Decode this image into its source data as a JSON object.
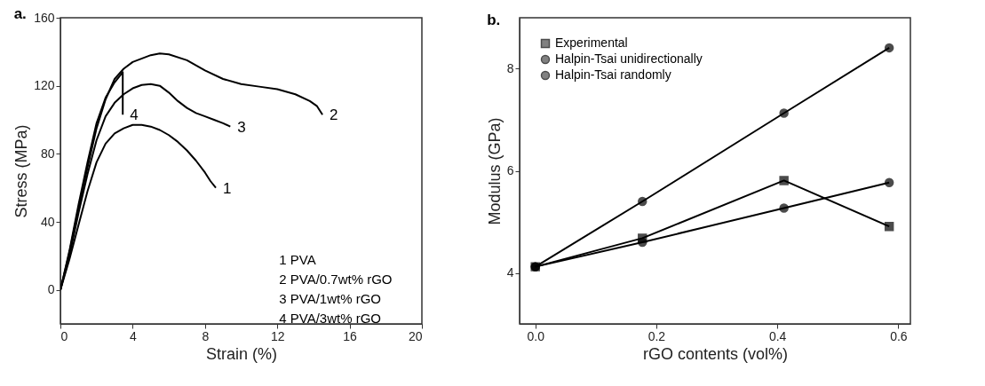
{
  "chart_data": [
    {
      "type": "line",
      "title": "a.",
      "xlabel": "Strain (%)",
      "ylabel": "Stress (MPa)",
      "xlim": [
        0,
        20
      ],
      "ylim": [
        -20,
        160
      ],
      "xticks": [
        0,
        4,
        8,
        12,
        16,
        20
      ],
      "yticks": [
        0,
        40,
        80,
        120,
        160
      ],
      "grid": false,
      "series": [
        {
          "color": "#000000",
          "x": [
            0,
            0.5,
            1,
            1.5,
            2,
            2.5,
            3,
            3.5,
            4,
            4.5,
            5,
            5.5,
            6,
            6.5,
            7,
            7.5,
            8,
            8.3,
            8.6
          ],
          "values": [
            0,
            18,
            38,
            58,
            75,
            86,
            92,
            95,
            97,
            97,
            96,
            94,
            91,
            87,
            82,
            76,
            69,
            64,
            60
          ]
        },
        {
          "color": "#000000",
          "x": [
            0,
            0.5,
            1,
            1.5,
            2,
            2.5,
            3,
            3.5,
            4,
            5,
            5.5,
            6,
            7,
            8,
            9,
            10,
            11,
            12,
            13,
            13.8,
            14.2,
            14.5
          ],
          "values": [
            0,
            22,
            48,
            72,
            95,
            112,
            124,
            130,
            134,
            138,
            139,
            138.5,
            135,
            129,
            124,
            121,
            119.5,
            118,
            115,
            111,
            108,
            103
          ]
        },
        {
          "color": "#000000",
          "x": [
            0,
            0.5,
            1,
            1.5,
            2,
            2.5,
            3,
            3.5,
            4,
            4.5,
            5,
            5.5,
            6,
            6.5,
            7,
            7.5,
            8,
            8.5,
            9,
            9.4
          ],
          "values": [
            0,
            20,
            45,
            68,
            88,
            102,
            110,
            115,
            118.5,
            120.5,
            121,
            120,
            116,
            111,
            107,
            104,
            102,
            100,
            98,
            96
          ]
        },
        {
          "color": "#000000",
          "x": [
            0,
            0.5,
            1,
            1.5,
            2,
            2.5,
            3,
            3.45,
            3.45
          ],
          "values": [
            0,
            23,
            50,
            75,
            98,
            113,
            122,
            128,
            103
          ]
        }
      ],
      "annotations": [
        {
          "text": "1",
          "x": 8.6,
          "y": 60
        },
        {
          "text": "2",
          "x": 14.5,
          "y": 103
        },
        {
          "text": "3",
          "x": 9.4,
          "y": 96
        },
        {
          "text": "4",
          "x": 3.45,
          "y": 103
        },
        "1 PVA",
        "2 PVA/0.7wt% rGO",
        "3 PVA/1wt% rGO",
        "4 PVA/3wt% rGO"
      ]
    },
    {
      "type": "line",
      "title": "b.",
      "xlabel": "rGO contents (vol%)",
      "ylabel": "Modulus (GPa)",
      "xlim": [
        -0.026,
        0.62
      ],
      "ylim": [
        3,
        9
      ],
      "xticks": [
        {
          "value": 0,
          "label": "0.0"
        },
        {
          "value": 0.2,
          "label": "0.2"
        },
        {
          "value": 0.4,
          "label": "0.4"
        },
        {
          "value": 0.6,
          "label": "0.6"
        }
      ],
      "yticks": [
        4,
        6,
        8
      ],
      "grid": false,
      "legend": "top left",
      "x": [
        0,
        0.177,
        0.411,
        0.585
      ],
      "series": [
        {
          "name": "Experimental",
          "color": "#000000",
          "marker": "square",
          "values": [
            4.12,
            4.68,
            5.81,
            4.91
          ]
        },
        {
          "name": "Halpin-Tsai unidirectionally",
          "color": "#000000",
          "marker": "circle",
          "values": [
            4.12,
            5.4,
            7.13,
            8.41
          ]
        },
        {
          "name": "Halpin-Tsai randomly",
          "color": "#000000",
          "marker": "circle",
          "values": [
            4.12,
            4.6,
            5.27,
            5.77
          ]
        }
      ]
    }
  ]
}
